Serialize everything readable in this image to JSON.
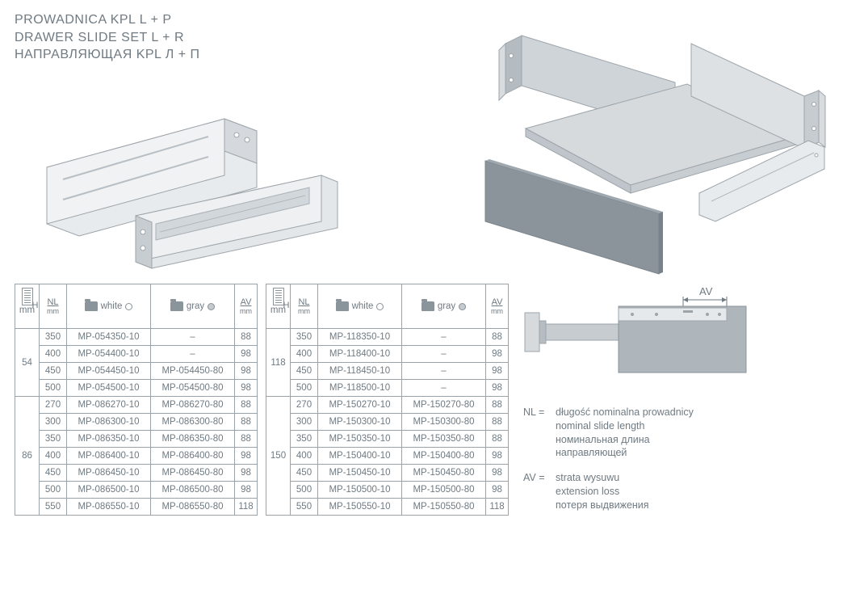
{
  "titles": {
    "pl": "PROWADNICA KPL L + P",
    "en": "DRAWER SLIDE SET L + R",
    "ru": "НАПРАВЛЯЮЩАЯ KPL Л + П"
  },
  "headers": {
    "h_label": "H",
    "nl_label": "NL",
    "mm": "mm",
    "av_label": "AV",
    "white": "white",
    "gray": "gray"
  },
  "tables": [
    {
      "groups": [
        {
          "h": "54",
          "rows": [
            {
              "nl": "350",
              "white": "MP-054350-10",
              "gray": "–",
              "av": "88"
            },
            {
              "nl": "400",
              "white": "MP-054400-10",
              "gray": "–",
              "av": "98"
            },
            {
              "nl": "450",
              "white": "MP-054450-10",
              "gray": "MP-054450-80",
              "av": "98"
            },
            {
              "nl": "500",
              "white": "MP-054500-10",
              "gray": "MP-054500-80",
              "av": "98"
            }
          ]
        },
        {
          "h": "86",
          "rows": [
            {
              "nl": "270",
              "white": "MP-086270-10",
              "gray": "MP-086270-80",
              "av": "88"
            },
            {
              "nl": "300",
              "white": "MP-086300-10",
              "gray": "MP-086300-80",
              "av": "88"
            },
            {
              "nl": "350",
              "white": "MP-086350-10",
              "gray": "MP-086350-80",
              "av": "88"
            },
            {
              "nl": "400",
              "white": "MP-086400-10",
              "gray": "MP-086400-80",
              "av": "98"
            },
            {
              "nl": "450",
              "white": "MP-086450-10",
              "gray": "MP-086450-80",
              "av": "98"
            },
            {
              "nl": "500",
              "white": "MP-086500-10",
              "gray": "MP-086500-80",
              "av": "98"
            },
            {
              "nl": "550",
              "white": "MP-086550-10",
              "gray": "MP-086550-80",
              "av": "118"
            }
          ]
        }
      ]
    },
    {
      "groups": [
        {
          "h": "118",
          "rows": [
            {
              "nl": "350",
              "white": "MP-118350-10",
              "gray": "–",
              "av": "88"
            },
            {
              "nl": "400",
              "white": "MP-118400-10",
              "gray": "–",
              "av": "98"
            },
            {
              "nl": "450",
              "white": "MP-118450-10",
              "gray": "–",
              "av": "98"
            },
            {
              "nl": "500",
              "white": "MP-118500-10",
              "gray": "–",
              "av": "98"
            }
          ]
        },
        {
          "h": "150",
          "rows": [
            {
              "nl": "270",
              "white": "MP-150270-10",
              "gray": "MP-150270-80",
              "av": "88"
            },
            {
              "nl": "300",
              "white": "MP-150300-10",
              "gray": "MP-150300-80",
              "av": "88"
            },
            {
              "nl": "350",
              "white": "MP-150350-10",
              "gray": "MP-150350-80",
              "av": "88"
            },
            {
              "nl": "400",
              "white": "MP-150400-10",
              "gray": "MP-150400-80",
              "av": "98"
            },
            {
              "nl": "450",
              "white": "MP-150450-10",
              "gray": "MP-150450-80",
              "av": "98"
            },
            {
              "nl": "500",
              "white": "MP-150500-10",
              "gray": "MP-150500-80",
              "av": "98"
            },
            {
              "nl": "550",
              "white": "MP-150550-10",
              "gray": "MP-150550-80",
              "av": "118"
            }
          ]
        }
      ]
    }
  ],
  "av_diagram": {
    "label": "AV"
  },
  "legend": {
    "nl": {
      "key": "NL =",
      "pl": "długość nominalna prowadnicy",
      "en": "nominal slide length",
      "ru1": "номинальная длина",
      "ru2": "направляющей"
    },
    "av": {
      "key": "AV =",
      "pl": "strata wysuwu",
      "en": "extension loss",
      "ru": "потеря выдвижения"
    }
  },
  "colors": {
    "text": "#6f7a82",
    "border": "#9aa3aa",
    "slide_light": "#e8ebed",
    "slide_mid": "#c8cdd1",
    "slide_dark": "#9da5ab",
    "panel_gray": "#b4bbc1",
    "panel_dark": "#8b949b"
  }
}
